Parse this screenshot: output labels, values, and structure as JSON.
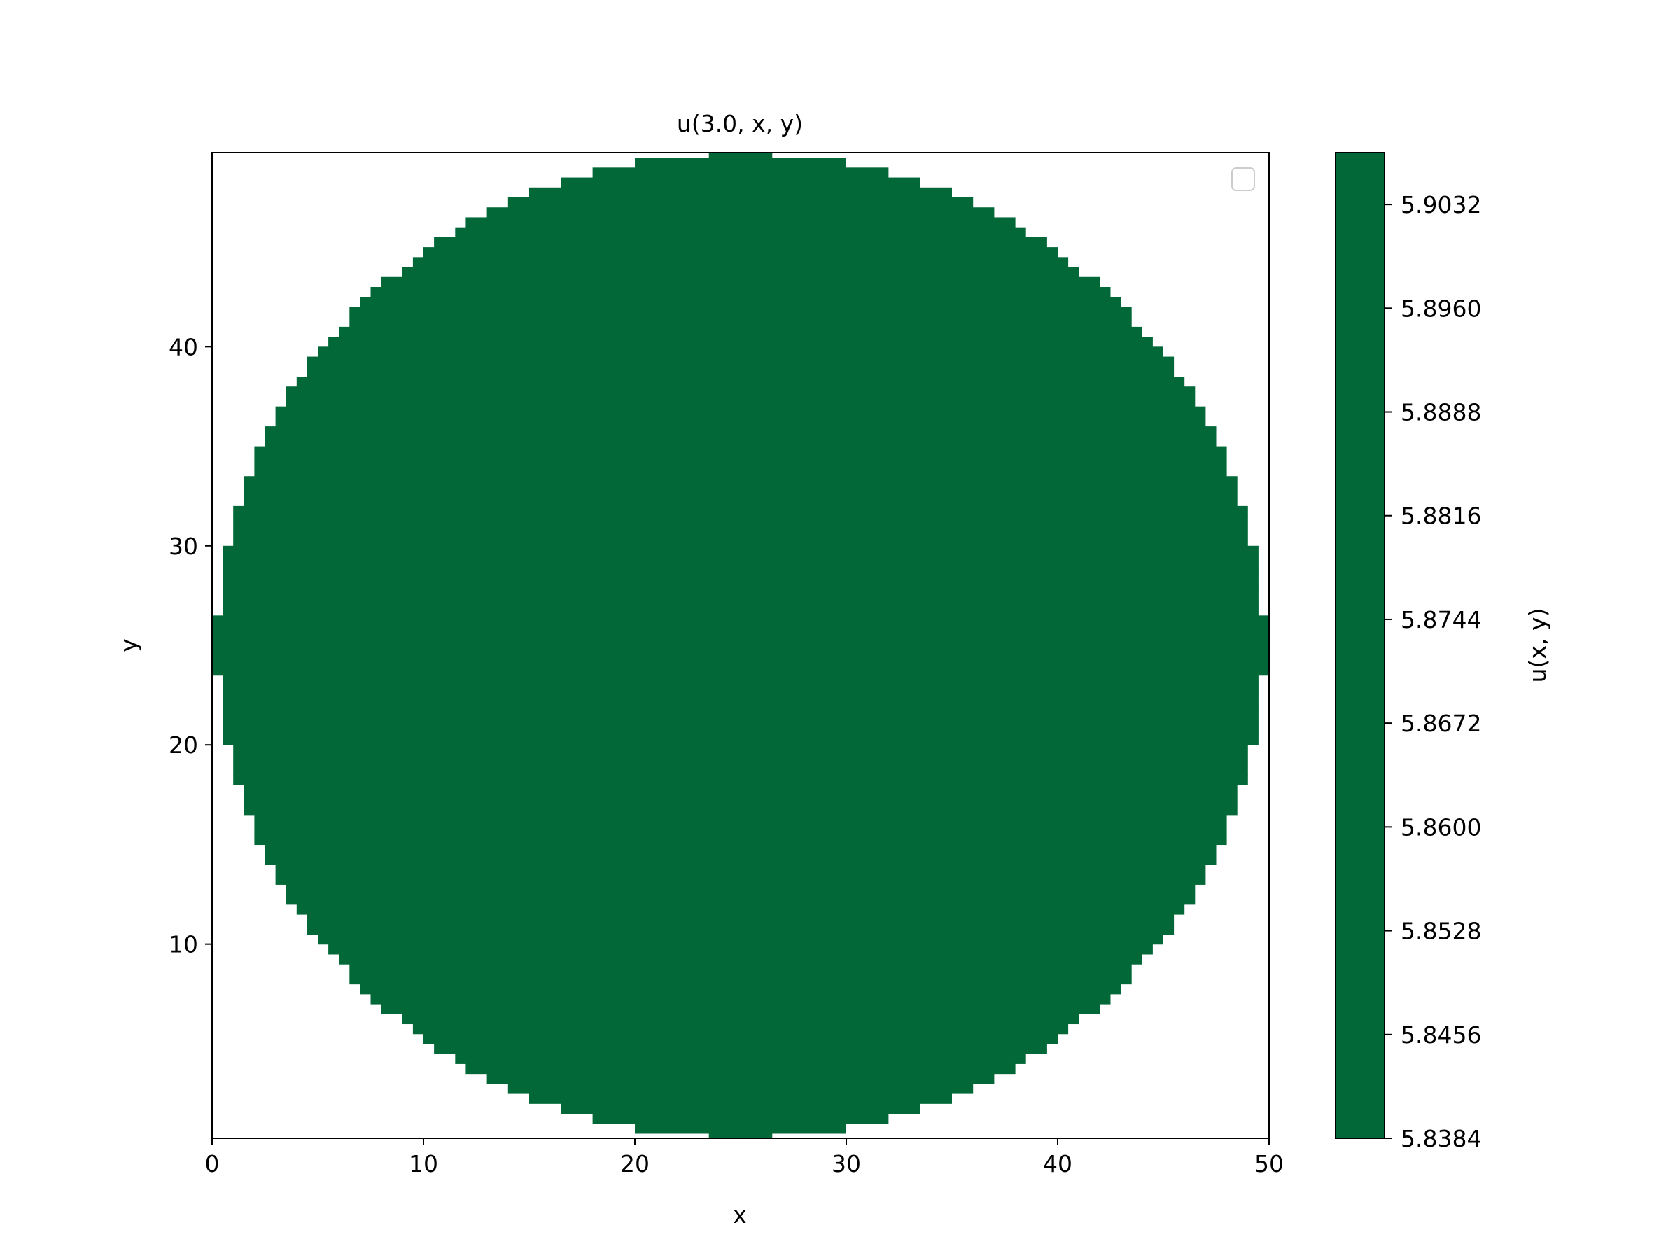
{
  "chart_data": {
    "type": "heatmap",
    "title": "u(3.0, x, y)",
    "xlabel": "x",
    "ylabel": "y",
    "xlim": [
      0,
      50
    ],
    "ylim": [
      0.25,
      49.75
    ],
    "x_ticks": [
      "0",
      "10",
      "20",
      "30",
      "40",
      "50"
    ],
    "x_tick_values": [
      0,
      10,
      20,
      30,
      40,
      50
    ],
    "y_ticks": [
      "10",
      "20",
      "30",
      "40"
    ],
    "y_tick_values": [
      10,
      20,
      30,
      40
    ],
    "field": {
      "shape": "disk",
      "center": [
        25,
        25
      ],
      "radius": 24.8,
      "value": 5.8384,
      "color": "#026838",
      "outside": "empty"
    },
    "colorbar": {
      "label": "u(x, y)",
      "range": [
        5.8384,
        5.9068
      ],
      "ticks": [
        "5.8384",
        "5.8456",
        "5.8528",
        "5.8600",
        "5.8672",
        "5.8744",
        "5.8816",
        "5.8888",
        "5.8960",
        "5.9032"
      ],
      "tick_values": [
        5.8384,
        5.8456,
        5.8528,
        5.86,
        5.8672,
        5.8744,
        5.8816,
        5.8888,
        5.896,
        5.9032
      ],
      "color": "#026838"
    },
    "legend": {
      "placement": "top-right",
      "entries": []
    },
    "grid": false
  }
}
